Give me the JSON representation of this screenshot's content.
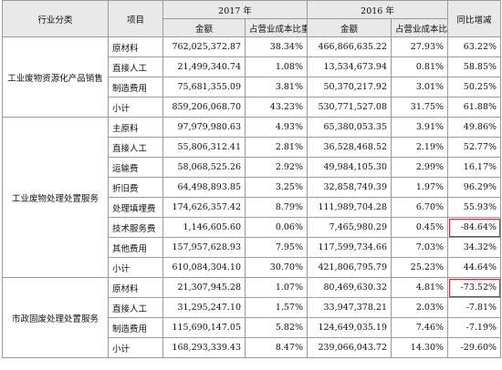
{
  "header": {
    "category": "行业分类",
    "item": "项目",
    "year_2017": "2017 年",
    "year_2016": "2016 年",
    "yoy": "同比增减",
    "amount": "金额",
    "ratio": "占营业成本比重"
  },
  "groups": [
    {
      "category": "工业废物资源化产品销售",
      "rows": [
        {
          "item": "原材料",
          "amt17": "762,025,372.87",
          "pct17": "38.34%",
          "amt16": "466,866,635.22",
          "pct16": "27.93%",
          "yoy": "63.22%"
        },
        {
          "item": "直接人工",
          "amt17": "21,499,340.74",
          "pct17": "1.08%",
          "amt16": "13,534,673.94",
          "pct16": "0.81%",
          "yoy": "58.85%"
        },
        {
          "item": "制造费用",
          "amt17": "75,681,355.09",
          "pct17": "3.81%",
          "amt16": "50,370,217.92",
          "pct16": "3.01%",
          "yoy": "50.25%"
        },
        {
          "item": "小计",
          "amt17": "859,206,068.70",
          "pct17": "43.23%",
          "amt16": "530,771,527.08",
          "pct16": "31.75%",
          "yoy": "61.88%"
        }
      ]
    },
    {
      "category": "工业废物处理处置服务",
      "rows": [
        {
          "item": "主原料",
          "amt17": "97,979,980.63",
          "pct17": "4.93%",
          "amt16": "65,380,053.35",
          "pct16": "3.91%",
          "yoy": "49.86%"
        },
        {
          "item": "直接人工",
          "amt17": "55,806,312.41",
          "pct17": "2.81%",
          "amt16": "36,528,468.52",
          "pct16": "2.19%",
          "yoy": "52.77%"
        },
        {
          "item": "运输费",
          "amt17": "58,068,525.26",
          "pct17": "2.92%",
          "amt16": "49,984,105.30",
          "pct16": "2.99%",
          "yoy": "16.17%"
        },
        {
          "item": "折旧费",
          "amt17": "64,498,893.85",
          "pct17": "3.25%",
          "amt16": "32,858,749.39",
          "pct16": "1.97%",
          "yoy": "96.29%"
        },
        {
          "item": "处理填埋费",
          "amt17": "174,626,357.42",
          "pct17": "8.79%",
          "amt16": "111,989,704.28",
          "pct16": "6.70%",
          "yoy": "55.93%"
        },
        {
          "item": "技术服务费",
          "amt17": "1,146,605.60",
          "pct17": "0.06%",
          "amt16": "7,465,980.29",
          "pct16": "0.45%",
          "yoy": "-84.64%"
        },
        {
          "item": "其他费用",
          "amt17": "157,957,628.93",
          "pct17": "7.95%",
          "amt16": "117,599,734.66",
          "pct16": "7.03%",
          "yoy": "34.32%"
        },
        {
          "item": "小计",
          "amt17": "610,084,304.10",
          "pct17": "30.70%",
          "amt16": "421,806,795.79",
          "pct16": "25.23%",
          "yoy": "44.64%"
        }
      ]
    },
    {
      "category": "市政固废处理处置服务",
      "rows": [
        {
          "item": "原材料",
          "amt17": "21,307,945.28",
          "pct17": "1.07%",
          "amt16": "80,469,630.32",
          "pct16": "4.81%",
          "yoy": "-73.52%"
        },
        {
          "item": "直接人工",
          "amt17": "31,295,247.10",
          "pct17": "1.57%",
          "amt16": "33,947,378.21",
          "pct16": "2.03%",
          "yoy": "-7.81%"
        },
        {
          "item": "制造费用",
          "amt17": "115,690,147.05",
          "pct17": "5.82%",
          "amt16": "124,649,035.19",
          "pct16": "7.46%",
          "yoy": "-7.19%"
        },
        {
          "item": "小计",
          "amt17": "168,293,339.43",
          "pct17": "8.47%",
          "amt16": "239,066,043.72",
          "pct16": "14.30%",
          "yoy": "-29.60%"
        }
      ]
    }
  ],
  "highlight_color": "#d9252a"
}
